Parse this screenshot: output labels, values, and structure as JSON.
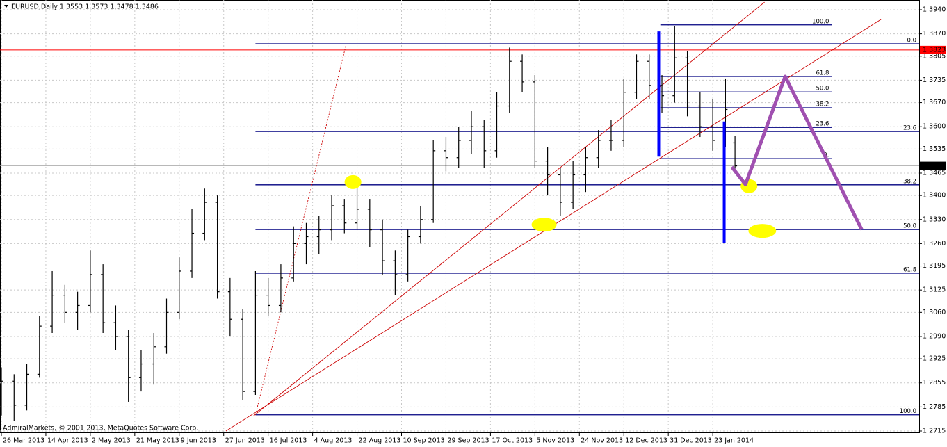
{
  "chart_data": {
    "type": "ohlc",
    "title": "EURUSD,Daily  1.3553 1.3573 1.3478 1.3486",
    "footer": "AdmiralMarkets, © 2001-2013, MetaQuotes Software Corp.",
    "color": "#000000",
    "grid": true,
    "xlim": [
      0,
      289
    ],
    "ylim": [
      1.2715,
      1.394
    ],
    "yticks": [
      {
        "value": 1.394,
        "label": "1.3940"
      },
      {
        "value": 1.387,
        "label": "1.3870"
      },
      1.3805,
      1.3735,
      {
        "value": 1.367,
        "label": "1.3670"
      },
      {
        "value": 1.36,
        "label": "1.3600"
      },
      1.3535,
      1.3465,
      {
        "value": 1.34,
        "label": "1.3400"
      },
      {
        "value": 1.333,
        "label": "1.3330"
      },
      {
        "value": 1.326,
        "label": "1.3260"
      },
      1.3195,
      1.3125,
      {
        "value": 1.306,
        "label": "1.3060"
      },
      {
        "value": 1.299,
        "label": "1.2990"
      },
      1.2925,
      1.2855,
      1.2785,
      1.2715
    ],
    "xticks": [
      {
        "value": 0,
        "label": "26 Mar 2013"
      },
      {
        "value": 14,
        "label": "14 Apr 2013"
      },
      {
        "value": 28,
        "label": "2 May 2013"
      },
      {
        "value": 42,
        "label": "21 May 2013"
      },
      {
        "value": 56,
        "label": "9 Jun 2013"
      },
      {
        "value": 70,
        "label": "27 Jun 2013"
      },
      {
        "value": 84,
        "label": "16 Jul 2013"
      },
      {
        "value": 98,
        "label": "4 Aug 2013"
      },
      {
        "value": 112,
        "label": "22 Aug 2013"
      },
      {
        "value": 126,
        "label": "10 Sep 2013"
      },
      {
        "value": 140,
        "label": "29 Sep 2013"
      },
      {
        "value": 154,
        "label": "17 Oct 2013"
      },
      {
        "value": 168,
        "label": "5 Nov 2013"
      },
      {
        "value": 182,
        "label": "24 Nov 2013"
      },
      {
        "value": 196,
        "label": "12 Dec 2013"
      },
      {
        "value": 210,
        "label": "31 Dec 2013"
      },
      {
        "value": 224,
        "label": "23 Jan 2014"
      }
    ],
    "x": [
      0,
      4,
      8,
      12,
      16,
      20,
      24,
      28,
      32,
      36,
      40,
      44,
      48,
      52,
      56,
      60,
      64,
      68,
      72,
      76,
      80,
      84,
      88,
      92,
      96,
      100,
      104,
      108,
      112,
      116,
      120,
      124,
      128,
      132,
      136,
      140,
      144,
      148,
      152,
      156,
      160,
      164,
      168,
      172,
      176,
      180,
      184,
      188,
      192,
      196,
      200,
      204,
      208,
      212,
      216,
      220,
      224,
      228,
      231
    ],
    "open": [
      1.283,
      1.286,
      1.279,
      1.288,
      1.302,
      1.311,
      1.306,
      1.308,
      1.317,
      1.303,
      1.299,
      1.287,
      1.291,
      1.296,
      1.306,
      1.318,
      1.329,
      1.338,
      1.312,
      1.304,
      1.283,
      1.311,
      1.308,
      1.316,
      1.326,
      1.328,
      1.33,
      1.337,
      1.332,
      1.336,
      1.33,
      1.321,
      1.317,
      1.328,
      1.333,
      1.353,
      1.351,
      1.356,
      1.36,
      1.353,
      1.366,
      1.379,
      1.373,
      1.35,
      1.346,
      1.338,
      1.346,
      1.351,
      1.356,
      1.356,
      1.37,
      1.379,
      1.372,
      1.369,
      1.38,
      1.366,
      1.36,
      1.356,
      1.3553
    ],
    "high": [
      1.29,
      1.288,
      1.291,
      1.305,
      1.318,
      1.314,
      1.312,
      1.324,
      1.32,
      1.308,
      1.301,
      1.295,
      1.3,
      1.31,
      1.322,
      1.336,
      1.342,
      1.34,
      1.316,
      1.307,
      1.318,
      1.316,
      1.32,
      1.331,
      1.332,
      1.334,
      1.34,
      1.339,
      1.345,
      1.339,
      1.333,
      1.324,
      1.33,
      1.337,
      1.356,
      1.357,
      1.36,
      1.3645,
      1.362,
      1.37,
      1.383,
      1.381,
      1.375,
      1.354,
      1.348,
      1.35,
      1.354,
      1.359,
      1.362,
      1.374,
      1.381,
      1.381,
      1.375,
      1.3893,
      1.382,
      1.37,
      1.368,
      1.374,
      1.3573
    ],
    "low": [
      1.276,
      1.2745,
      1.2775,
      1.287,
      1.3,
      1.303,
      1.301,
      1.306,
      1.3,
      1.295,
      1.28,
      1.283,
      1.285,
      1.294,
      1.304,
      1.316,
      1.327,
      1.31,
      1.299,
      1.2805,
      1.282,
      1.305,
      1.306,
      1.315,
      1.32,
      1.323,
      1.327,
      1.329,
      1.33,
      1.325,
      1.317,
      1.311,
      1.315,
      1.326,
      1.332,
      1.347,
      1.348,
      1.352,
      1.348,
      1.351,
      1.364,
      1.37,
      1.348,
      1.34,
      1.334,
      1.336,
      1.341,
      1.348,
      1.353,
      1.354,
      1.368,
      1.368,
      1.364,
      1.367,
      1.363,
      1.357,
      1.353,
      1.354,
      1.3478
    ],
    "close": [
      1.286,
      1.279,
      1.288,
      1.302,
      1.311,
      1.306,
      1.308,
      1.317,
      1.303,
      1.299,
      1.287,
      1.291,
      1.296,
      1.306,
      1.318,
      1.329,
      1.338,
      1.312,
      1.304,
      1.283,
      1.311,
      1.308,
      1.316,
      1.326,
      1.328,
      1.33,
      1.337,
      1.332,
      1.336,
      1.33,
      1.321,
      1.317,
      1.328,
      1.333,
      1.353,
      1.351,
      1.356,
      1.36,
      1.353,
      1.366,
      1.379,
      1.373,
      1.35,
      1.346,
      1.338,
      1.346,
      1.351,
      1.356,
      1.356,
      1.37,
      1.379,
      1.372,
      1.369,
      1.38,
      1.366,
      1.36,
      1.356,
      1.365,
      1.3486
    ],
    "current_price": 1.3486,
    "price_line": 1.3823,
    "price_line_color": "#ff0000",
    "fibs": [
      {
        "color": "#000080",
        "x": [
          80,
          289
        ],
        "levels": [
          {
            "price": 1.3841,
            "label": "0.0"
          },
          {
            "price": 1.3586,
            "label": "23.6"
          },
          {
            "price": 1.3431,
            "label": "38.2"
          },
          {
            "price": 1.3301,
            "label": "50.0"
          },
          {
            "price": 1.3174,
            "label": "61.8"
          },
          {
            "price": 1.2762,
            "label": "100.0"
          }
        ]
      },
      {
        "color": "#000080",
        "x": [
          207.5,
          261.5
        ],
        "levels": [
          {
            "price": 1.3896,
            "label": "100.0"
          },
          {
            "price": 1.3746,
            "label": "61.8"
          },
          {
            "price": 1.3701,
            "label": "50.0"
          },
          {
            "price": 1.3655,
            "label": "38.2"
          },
          {
            "price": 1.3598,
            "label": "23.6"
          },
          {
            "price": 1.3507,
            "label": "0."
          }
        ]
      }
    ],
    "trendlines": [
      {
        "color": "#cc0000",
        "dashed": false,
        "x": [
          79.4,
          240.3
        ],
        "y": [
          1.2759,
          1.3962
        ]
      },
      {
        "color": "#cc0000",
        "dashed": false,
        "x": [
          70.7,
          277
        ],
        "y": [
          1.2715,
          1.3912
        ]
      },
      {
        "color": "#cc0000",
        "dashed": true,
        "x": [
          80,
          108.5
        ],
        "y": [
          1.2762,
          1.3837
        ]
      }
    ],
    "verticals": [
      {
        "color": "#0000ff",
        "x": 207,
        "y": [
          1.3877,
          1.3513
        ]
      },
      {
        "color": "#0000ff",
        "x": 227.6,
        "y": [
          1.3615,
          1.3261
        ]
      }
    ],
    "projection": {
      "color": "#a050b0",
      "x": [
        230,
        234.3,
        246.8,
        270.9
      ],
      "y": [
        1.3483,
        1.3432,
        1.3746,
        1.3301
      ]
    },
    "highlights": {
      "color": "#ffff00",
      "x": [
        110.7,
        170.9,
        235.4,
        239.6
      ],
      "y": [
        1.3439,
        1.3315,
        1.3427,
        1.3297
      ]
    }
  }
}
